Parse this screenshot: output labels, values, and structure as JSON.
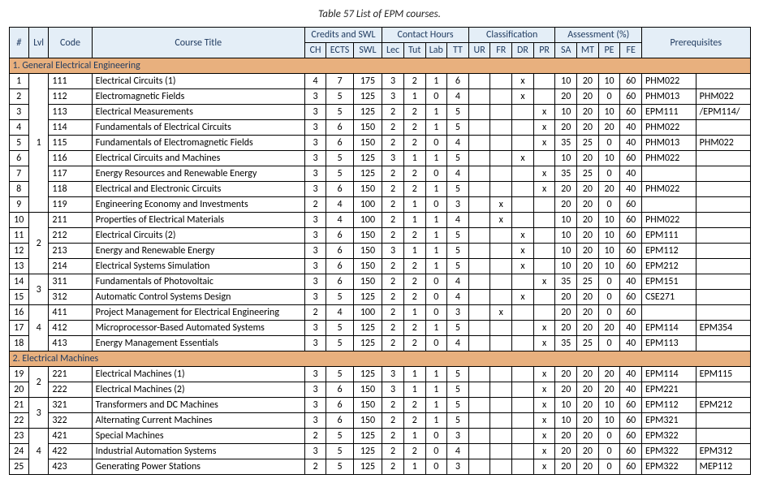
{
  "caption": "Table 57 List of EPM courses.",
  "colors": {
    "header_bg": "#e4eef7",
    "section_bg": "#e8b07e",
    "border": "#000000",
    "header_text": "#1f3a5f"
  },
  "headers": {
    "num": "#",
    "lvl": "Lvl",
    "code": "Code",
    "title": "Course Title",
    "credits_group": "Credits and SWL",
    "contact_group": "Contact Hours",
    "class_group": "Classification",
    "assess_group": "Assessment (%)",
    "prereq": "Prerequisites",
    "ch": "CH",
    "ects": "ECTS",
    "swl": "SWL",
    "lec": "Lec",
    "tut": "Tut",
    "lab": "Lab",
    "tt": "TT",
    "ur": "UR",
    "fr": "FR",
    "dr": "DR",
    "pr": "PR",
    "sa": "SA",
    "mt": "MT",
    "pe": "PE",
    "fe": "FE"
  },
  "sections": [
    {
      "title": "1. General Electrical Engineering",
      "rows": [
        {
          "n": 1,
          "lvl": "1",
          "lvlspan": 9,
          "code": "111",
          "title": "Electrical Circuits (1)",
          "ch": 4,
          "ects": 7,
          "swl": 175,
          "lec": 3,
          "tut": 2,
          "lab": 1,
          "tt": 6,
          "ur": "",
          "fr": "",
          "dr": "x",
          "pr": "",
          "sa": 10,
          "mt": 20,
          "pe": 10,
          "fe": 60,
          "pq": [
            "PHM022",
            ""
          ]
        },
        {
          "n": 2,
          "code": "112",
          "title": "Electromagnetic Fields",
          "ch": 3,
          "ects": 5,
          "swl": 125,
          "lec": 3,
          "tut": 1,
          "lab": 0,
          "tt": 4,
          "ur": "",
          "fr": "",
          "dr": "x",
          "pr": "",
          "sa": 20,
          "mt": 20,
          "pe": 0,
          "fe": 60,
          "pq": [
            "PHM013",
            "PHM022"
          ]
        },
        {
          "n": 3,
          "code": "113",
          "title": "Electrical Measurements",
          "ch": 3,
          "ects": 5,
          "swl": 125,
          "lec": 2,
          "tut": 2,
          "lab": 1,
          "tt": 5,
          "ur": "",
          "fr": "",
          "dr": "",
          "pr": "x",
          "sa": 10,
          "mt": 20,
          "pe": 10,
          "fe": 60,
          "pq": [
            "EPM111",
            "/EPM114/"
          ]
        },
        {
          "n": 4,
          "code": "114",
          "title": "Fundamentals of Electrical Circuits",
          "ch": 3,
          "ects": 6,
          "swl": 150,
          "lec": 2,
          "tut": 2,
          "lab": 1,
          "tt": 5,
          "ur": "",
          "fr": "",
          "dr": "",
          "pr": "x",
          "sa": 20,
          "mt": 20,
          "pe": 20,
          "fe": 40,
          "pq": [
            "PHM022",
            ""
          ]
        },
        {
          "n": 5,
          "code": "115",
          "title": "Fundamentals of Electromagnetic Fields",
          "ch": 3,
          "ects": 6,
          "swl": 150,
          "lec": 2,
          "tut": 2,
          "lab": 0,
          "tt": 4,
          "ur": "",
          "fr": "",
          "dr": "",
          "pr": "x",
          "sa": 35,
          "mt": 25,
          "pe": 0,
          "fe": 40,
          "pq": [
            "PHM013",
            "PHM022"
          ]
        },
        {
          "n": 6,
          "code": "116",
          "title": "Electrical Circuits and Machines",
          "ch": 3,
          "ects": 5,
          "swl": 125,
          "lec": 3,
          "tut": 1,
          "lab": 1,
          "tt": 5,
          "ur": "",
          "fr": "",
          "dr": "x",
          "pr": "",
          "sa": 10,
          "mt": 20,
          "pe": 10,
          "fe": 60,
          "pq": [
            "PHM022",
            ""
          ]
        },
        {
          "n": 7,
          "code": "117",
          "title": "Energy Resources and Renewable Energy",
          "ch": 3,
          "ects": 5,
          "swl": 125,
          "lec": 2,
          "tut": 2,
          "lab": 0,
          "tt": 4,
          "ur": "",
          "fr": "",
          "dr": "",
          "pr": "x",
          "sa": 35,
          "mt": 25,
          "pe": 0,
          "fe": 40,
          "pq": [
            "",
            ""
          ]
        },
        {
          "n": 8,
          "code": "118",
          "title": "Electrical and Electronic Circuits",
          "ch": 3,
          "ects": 6,
          "swl": 150,
          "lec": 2,
          "tut": 2,
          "lab": 1,
          "tt": 5,
          "ur": "",
          "fr": "",
          "dr": "",
          "pr": "x",
          "sa": 20,
          "mt": 20,
          "pe": 20,
          "fe": 40,
          "pq": [
            "PHM022",
            ""
          ]
        },
        {
          "n": 9,
          "code": "119",
          "title": "Engineering Economy and Investments",
          "ch": 2,
          "ects": 4,
          "swl": 100,
          "lec": 2,
          "tut": 1,
          "lab": 0,
          "tt": 3,
          "ur": "",
          "fr": "x",
          "dr": "",
          "pr": "",
          "sa": 20,
          "mt": 20,
          "pe": 0,
          "fe": 60,
          "pq": [
            "",
            ""
          ]
        },
        {
          "n": 10,
          "lvl": "2",
          "lvlspan": 4,
          "code": "211",
          "title": "Properties of Electrical Materials",
          "ch": 3,
          "ects": 4,
          "swl": 100,
          "lec": 2,
          "tut": 1,
          "lab": 1,
          "tt": 4,
          "ur": "",
          "fr": "x",
          "dr": "",
          "pr": "",
          "sa": 10,
          "mt": 20,
          "pe": 10,
          "fe": 60,
          "pq": [
            "PHM022",
            ""
          ]
        },
        {
          "n": 11,
          "code": "212",
          "title": "Electrical Circuits (2)",
          "ch": 3,
          "ects": 6,
          "swl": 150,
          "lec": 2,
          "tut": 2,
          "lab": 1,
          "tt": 5,
          "ur": "",
          "fr": "",
          "dr": "x",
          "pr": "",
          "sa": 10,
          "mt": 20,
          "pe": 10,
          "fe": 60,
          "pq": [
            "EPM111",
            ""
          ]
        },
        {
          "n": 12,
          "code": "213",
          "title": "Energy and Renewable Energy",
          "ch": 3,
          "ects": 6,
          "swl": 150,
          "lec": 3,
          "tut": 1,
          "lab": 1,
          "tt": 5,
          "ur": "",
          "fr": "",
          "dr": "x",
          "pr": "",
          "sa": 10,
          "mt": 20,
          "pe": 10,
          "fe": 60,
          "pq": [
            "EPM112",
            ""
          ]
        },
        {
          "n": 13,
          "code": "214",
          "title": "Electrical Systems Simulation",
          "ch": 3,
          "ects": 6,
          "swl": 150,
          "lec": 2,
          "tut": 2,
          "lab": 1,
          "tt": 5,
          "ur": "",
          "fr": "",
          "dr": "x",
          "pr": "",
          "sa": 10,
          "mt": 20,
          "pe": 10,
          "fe": 60,
          "pq": [
            "EPM212",
            ""
          ]
        },
        {
          "n": 14,
          "lvl": "3",
          "lvlspan": 2,
          "code": "311",
          "title": "Fundamentals of Photovoltaic",
          "ch": 3,
          "ects": 6,
          "swl": 150,
          "lec": 2,
          "tut": 2,
          "lab": 0,
          "tt": 4,
          "ur": "",
          "fr": "",
          "dr": "",
          "pr": "x",
          "sa": 35,
          "mt": 25,
          "pe": 0,
          "fe": 40,
          "pq": [
            "EPM151",
            ""
          ]
        },
        {
          "n": 15,
          "code": "312",
          "title": "Automatic Control Systems Design",
          "ch": 3,
          "ects": 5,
          "swl": 125,
          "lec": 2,
          "tut": 2,
          "lab": 0,
          "tt": 4,
          "ur": "",
          "fr": "",
          "dr": "x",
          "pr": "",
          "sa": 20,
          "mt": 20,
          "pe": 0,
          "fe": 60,
          "pq": [
            "CSE271",
            ""
          ]
        },
        {
          "n": 16,
          "lvl": "4",
          "lvlspan": 3,
          "code": "411",
          "title": "Project Management for Electrical Engineering",
          "ch": 2,
          "ects": 4,
          "swl": 100,
          "lec": 2,
          "tut": 1,
          "lab": 0,
          "tt": 3,
          "ur": "",
          "fr": "x",
          "dr": "",
          "pr": "",
          "sa": 20,
          "mt": 20,
          "pe": 0,
          "fe": 60,
          "pq": [
            "",
            ""
          ]
        },
        {
          "n": 17,
          "code": "412",
          "title": "Microprocessor-Based Automated Systems",
          "ch": 3,
          "ects": 5,
          "swl": 125,
          "lec": 2,
          "tut": 2,
          "lab": 1,
          "tt": 5,
          "ur": "",
          "fr": "",
          "dr": "",
          "pr": "x",
          "sa": 20,
          "mt": 20,
          "pe": 20,
          "fe": 40,
          "pq": [
            "EPM114",
            "EPM354"
          ]
        },
        {
          "n": 18,
          "code": "413",
          "title": "Energy Management Essentials",
          "ch": 3,
          "ects": 5,
          "swl": 125,
          "lec": 2,
          "tut": 2,
          "lab": 0,
          "tt": 4,
          "ur": "",
          "fr": "",
          "dr": "",
          "pr": "x",
          "sa": 35,
          "mt": 25,
          "pe": 0,
          "fe": 40,
          "pq": [
            "EPM113",
            ""
          ]
        }
      ]
    },
    {
      "title": "2. Electrical Machines",
      "rows": [
        {
          "n": 19,
          "lvl": "2",
          "lvlspan": 2,
          "code": "221",
          "title": "Electrical Machines (1)",
          "ch": 3,
          "ects": 5,
          "swl": 125,
          "lec": 3,
          "tut": 1,
          "lab": 1,
          "tt": 5,
          "ur": "",
          "fr": "",
          "dr": "",
          "pr": "x",
          "sa": 20,
          "mt": 20,
          "pe": 20,
          "fe": 40,
          "pq": [
            "EPM114",
            "EPM115"
          ]
        },
        {
          "n": 20,
          "code": "222",
          "title": "Electrical Machines (2)",
          "ch": 3,
          "ects": 6,
          "swl": 150,
          "lec": 3,
          "tut": 1,
          "lab": 1,
          "tt": 5,
          "ur": "",
          "fr": "",
          "dr": "",
          "pr": "x",
          "sa": 20,
          "mt": 20,
          "pe": 20,
          "fe": 40,
          "pq": [
            "EPM221",
            ""
          ]
        },
        {
          "n": 21,
          "lvl": "3",
          "lvlspan": 2,
          "code": "321",
          "title": "Transformers and DC Machines",
          "ch": 3,
          "ects": 6,
          "swl": 150,
          "lec": 2,
          "tut": 2,
          "lab": 1,
          "tt": 5,
          "ur": "",
          "fr": "",
          "dr": "",
          "pr": "x",
          "sa": 10,
          "mt": 20,
          "pe": 10,
          "fe": 60,
          "pq": [
            "EPM112",
            "EPM212"
          ]
        },
        {
          "n": 22,
          "code": "322",
          "title": "Alternating Current Machines",
          "ch": 3,
          "ects": 6,
          "swl": 150,
          "lec": 2,
          "tut": 2,
          "lab": 1,
          "tt": 5,
          "ur": "",
          "fr": "",
          "dr": "",
          "pr": "x",
          "sa": 10,
          "mt": 20,
          "pe": 10,
          "fe": 60,
          "pq": [
            "EPM321",
            ""
          ]
        },
        {
          "n": 23,
          "lvl": "4",
          "lvlspan": 3,
          "code": "421",
          "title": "Special Machines",
          "ch": 2,
          "ects": 5,
          "swl": 125,
          "lec": 2,
          "tut": 1,
          "lab": 0,
          "tt": 3,
          "ur": "",
          "fr": "",
          "dr": "",
          "pr": "x",
          "sa": 20,
          "mt": 20,
          "pe": 0,
          "fe": 60,
          "pq": [
            "EPM322",
            ""
          ]
        },
        {
          "n": 24,
          "code": "422",
          "title": "Industrial Automation Systems",
          "ch": 3,
          "ects": 5,
          "swl": 125,
          "lec": 2,
          "tut": 2,
          "lab": 0,
          "tt": 4,
          "ur": "",
          "fr": "",
          "dr": "",
          "pr": "x",
          "sa": 20,
          "mt": 20,
          "pe": 0,
          "fe": 60,
          "pq": [
            "EPM322",
            "EPM312"
          ]
        },
        {
          "n": 25,
          "code": "423",
          "title": "Generating Power Stations",
          "ch": 2,
          "ects": 5,
          "swl": 125,
          "lec": 2,
          "tut": 1,
          "lab": 0,
          "tt": 3,
          "ur": "",
          "fr": "",
          "dr": "",
          "pr": "x",
          "sa": 20,
          "mt": 20,
          "pe": 0,
          "fe": 60,
          "pq": [
            "EPM322",
            "MEP112"
          ]
        }
      ]
    }
  ]
}
